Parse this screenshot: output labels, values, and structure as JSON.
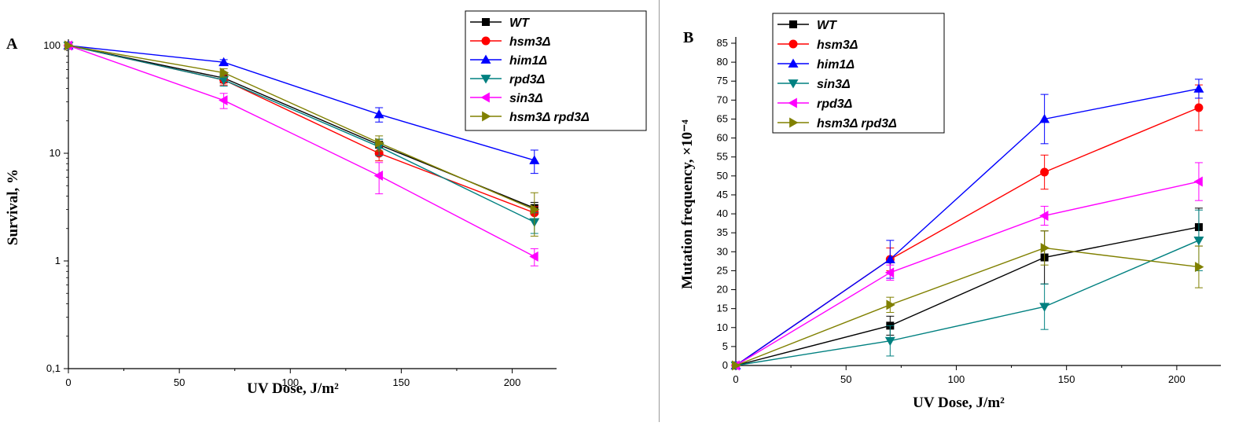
{
  "chart_data": [
    {
      "panel_label": "A",
      "type": "line",
      "xlabel": "UV Dose, J/m²",
      "ylabel": "Survival, %",
      "yscale": "log",
      "xlim": [
        0,
        220
      ],
      "ylim": [
        0.1,
        100
      ],
      "x_ticks": [
        0,
        50,
        100,
        150,
        200
      ],
      "x_tick_labels": [
        "0",
        "50",
        "100",
        "150",
        "200"
      ],
      "y_ticks": [
        0.1,
        1,
        10,
        100
      ],
      "y_tick_labels": [
        "0,1",
        "1",
        "10",
        "100"
      ],
      "legend_position": "top-right",
      "x": [
        0,
        70,
        140,
        210
      ],
      "series": [
        {
          "name": "WT",
          "color": "#000000",
          "marker": "square",
          "values": [
            100,
            50,
            12,
            3.1
          ],
          "errors": [
            0,
            5,
            1.5,
            0.4
          ]
        },
        {
          "name": "hsm3Δ",
          "color": "#ff0000",
          "marker": "circle",
          "values": [
            100,
            48,
            10,
            2.8
          ],
          "errors": [
            0,
            5,
            1.5,
            0.4
          ]
        },
        {
          "name": "him1Δ",
          "color": "#0000ff",
          "marker": "triangle-up",
          "values": [
            100,
            70,
            23,
            8.6
          ],
          "errors": [
            0,
            4,
            3.5,
            2.1
          ]
        },
        {
          "name": "rpd3Δ",
          "color": "#008080",
          "marker": "triangle-down",
          "values": [
            100,
            48,
            11.5,
            2.3
          ],
          "errors": [
            0,
            6,
            2,
            0.5
          ]
        },
        {
          "name": "sin3Δ",
          "color": "#ff00ff",
          "marker": "triangle-left",
          "values": [
            100,
            31,
            6.2,
            1.1
          ],
          "errors": [
            0,
            5,
            2,
            0.2
          ]
        },
        {
          "name": "hsm3Δ rpd3Δ",
          "color": "#808000",
          "marker": "triangle-right",
          "values": [
            100,
            56,
            12.5,
            3.0
          ],
          "errors": [
            0,
            5,
            2,
            1.3
          ]
        }
      ]
    },
    {
      "panel_label": "B",
      "type": "line",
      "xlabel": "UV Dose, J/m²",
      "ylabel": "Mutation frequency, ×10⁻⁴",
      "yscale": "linear",
      "xlim": [
        0,
        220
      ],
      "ylim": [
        0,
        85
      ],
      "x_ticks": [
        0,
        50,
        100,
        150,
        200
      ],
      "x_tick_labels": [
        "0",
        "50",
        "100",
        "150",
        "200"
      ],
      "y_ticks": [
        0,
        5,
        10,
        15,
        20,
        25,
        30,
        35,
        40,
        45,
        50,
        55,
        60,
        65,
        70,
        75,
        80,
        85
      ],
      "y_tick_labels": [
        "0",
        "5",
        "10",
        "15",
        "20",
        "25",
        "30",
        "35",
        "40",
        "45",
        "50",
        "55",
        "60",
        "65",
        "70",
        "75",
        "80",
        "85"
      ],
      "legend_position": "top-left",
      "x": [
        0,
        70,
        140,
        210
      ],
      "series": [
        {
          "name": "WT",
          "color": "#000000",
          "marker": "square",
          "values": [
            0,
            10.5,
            28.5,
            36.5
          ],
          "errors": [
            0,
            2.5,
            7,
            5
          ]
        },
        {
          "name": "hsm3Δ",
          "color": "#ff0000",
          "marker": "circle",
          "values": [
            0,
            28,
            51,
            68
          ],
          "errors": [
            0,
            3,
            4.5,
            6
          ]
        },
        {
          "name": "him1Δ",
          "color": "#0000ff",
          "marker": "triangle-up",
          "values": [
            0,
            28,
            65,
            73
          ],
          "errors": [
            0,
            5,
            6.5,
            2.5
          ]
        },
        {
          "name": "sin3Δ",
          "color": "#008080",
          "marker": "triangle-down",
          "values": [
            0,
            6.5,
            15.5,
            33
          ],
          "errors": [
            0,
            4,
            6,
            8
          ]
        },
        {
          "name": "rpd3Δ",
          "color": "#ff00ff",
          "marker": "triangle-left",
          "values": [
            0,
            24.5,
            39.5,
            48.5
          ],
          "errors": [
            0,
            2,
            2.5,
            5
          ]
        },
        {
          "name": "hsm3Δ rpd3Δ",
          "color": "#808000",
          "marker": "triangle-right",
          "values": [
            0,
            16,
            31,
            26
          ],
          "errors": [
            0,
            2,
            4.5,
            5.5
          ]
        }
      ]
    }
  ]
}
